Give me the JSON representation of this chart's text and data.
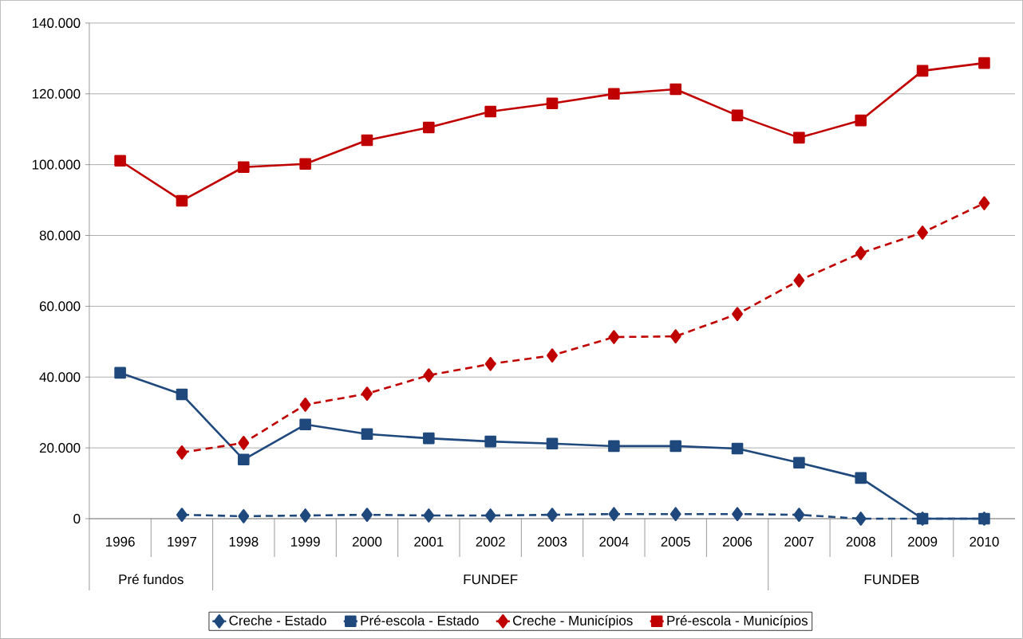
{
  "chart_data": {
    "type": "line",
    "categories": [
      "1996",
      "1997",
      "1998",
      "1999",
      "2000",
      "2001",
      "2002",
      "2003",
      "2004",
      "2005",
      "2006",
      "2007",
      "2008",
      "2009",
      "2010"
    ],
    "series": [
      {
        "name": "Creche - Estado",
        "color": "#1f497d",
        "marker": "diamond",
        "line_style": "dashed",
        "values": [
          null,
          1100,
          700,
          900,
          1100,
          900,
          900,
          1100,
          1300,
          1300,
          1300,
          1100,
          0,
          0,
          0
        ]
      },
      {
        "name": "Pré-escola - Estado",
        "color": "#1f497d",
        "marker": "square",
        "line_style": "solid",
        "values": [
          41200,
          35100,
          16700,
          26600,
          23900,
          22700,
          21800,
          21200,
          20500,
          20500,
          19800,
          15800,
          11500,
          0,
          0
        ]
      },
      {
        "name": "Creche - Municípios",
        "color": "#c00000",
        "marker": "diamond",
        "line_style": "dashed",
        "values": [
          null,
          18700,
          21400,
          32200,
          35300,
          40500,
          43700,
          46100,
          51300,
          51500,
          57800,
          67300,
          75000,
          80800,
          89100
        ]
      },
      {
        "name": "Pré-escola - Municípios",
        "color": "#c00000",
        "marker": "square",
        "line_style": "solid",
        "values": [
          101100,
          89800,
          99300,
          100200,
          106900,
          110500,
          115000,
          117300,
          120000,
          121300,
          113900,
          107600,
          112500,
          126500,
          128700
        ]
      }
    ],
    "ylim": [
      0,
      140000
    ],
    "yticks": [
      0,
      {
        "value": 20000,
        "label": "20.000"
      },
      {
        "value": 40000,
        "label": "40.000"
      },
      {
        "value": 60000,
        "label": "60.000"
      },
      {
        "value": 80000,
        "label": "80.000"
      },
      {
        "value": 100000,
        "label": "100.000"
      },
      {
        "value": 120000,
        "label": "120.000"
      },
      {
        "value": 140000,
        "label": "140.000"
      }
    ],
    "grid": "y",
    "legend": "bottom",
    "annotations": [
      "Pré fundos",
      "FUNDEF",
      "FUNDEB"
    ]
  }
}
